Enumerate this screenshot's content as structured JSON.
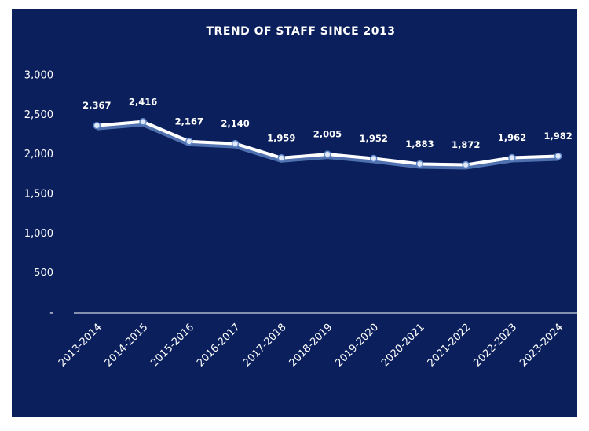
{
  "chart_data": {
    "type": "line",
    "title": "TREND OF STAFF SINCE 2013",
    "categories": [
      "2013-2014",
      "2014-2015",
      "2015-2016",
      "2016-2017",
      "2017-2018",
      "2018-2019",
      "2019-2020",
      "2020-2021",
      "2021-2022",
      "2022-2023",
      "2023-2024"
    ],
    "series": [
      {
        "color": "#ffffff",
        "values": [
          2367,
          2416,
          2167,
          2140,
          1959,
          2005,
          1952,
          1883,
          1872,
          1962,
          1982
        ],
        "value_labels": [
          "2,367",
          "2,416",
          "2,167",
          "2,140",
          "1,959",
          "2,005",
          "1,952",
          "1,883",
          "1,872",
          "1,962",
          "1,982"
        ]
      }
    ],
    "ylim": [
      0,
      3000
    ],
    "yticks": [
      {
        "value": 0,
        "label": "-"
      },
      500,
      {
        "value": 1000,
        "label": "1,000"
      },
      {
        "value": 1500,
        "label": "1,500"
      },
      {
        "value": 2000,
        "label": "2,000"
      },
      {
        "value": 2500,
        "label": "2,500"
      },
      {
        "value": 3000,
        "label": "3,000"
      }
    ],
    "grid": false
  }
}
